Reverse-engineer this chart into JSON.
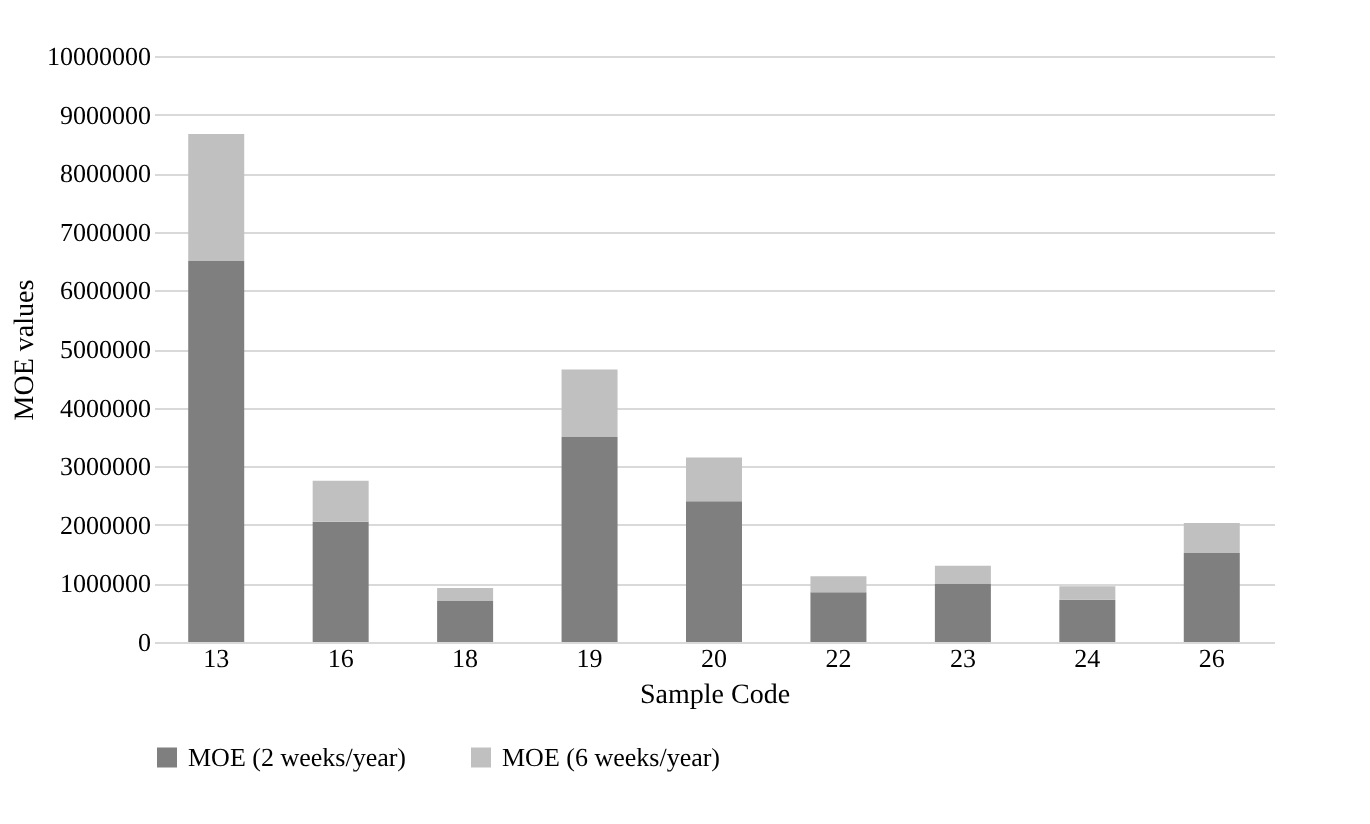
{
  "chart_data": {
    "type": "bar",
    "stacked": true,
    "xlabel": "Sample Code",
    "ylabel": "MOE values",
    "categories": [
      "13",
      "16",
      "18",
      "19",
      "20",
      "22",
      "23",
      "24",
      "26"
    ],
    "series": [
      {
        "name": "MOE (2 weeks/year)",
        "color": "#7f7f7f",
        "values": [
          6500000,
          2050000,
          700000,
          3500000,
          2400000,
          850000,
          1000000,
          720000,
          1520000
        ]
      },
      {
        "name": "MOE (6 weeks/year)",
        "color": "#c0c0c0",
        "values": [
          2170000,
          700000,
          220000,
          1150000,
          750000,
          270000,
          300000,
          230000,
          510000
        ]
      }
    ],
    "ylim": [
      0,
      10000000
    ],
    "yticks": [
      0,
      1000000,
      2000000,
      3000000,
      4000000,
      5000000,
      6000000,
      7000000,
      8000000,
      9000000,
      10000000
    ],
    "grid": "y",
    "legend": "bottom"
  }
}
